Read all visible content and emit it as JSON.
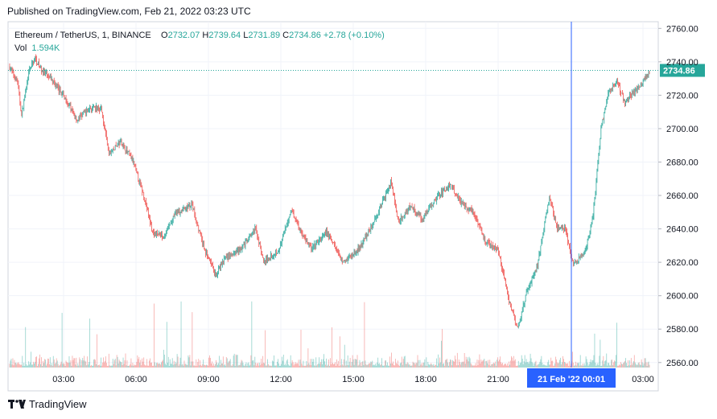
{
  "header": {
    "published_text": "Published on TradingView.com, Feb 21, 2022 03:23 UTC"
  },
  "legend": {
    "symbol": "Ethereum / TetherUS, 1, BINANCE",
    "o_label": "O",
    "o_value": "2732.07",
    "h_label": "H",
    "h_value": "2739.64",
    "l_label": "L",
    "l_value": "2731.89",
    "c_label": "C",
    "c_value": "2734.86",
    "change": "+2.78 (+0.10%)",
    "vol_label": "Vol",
    "vol_value": "1.594K"
  },
  "colors": {
    "up": "#26a69a",
    "down": "#ef5350",
    "crosshair": "#2962ff",
    "grid": "#f0f3fa"
  },
  "footer": {
    "brand": "TradingView",
    "logo_icon": "tradingview-logo-icon"
  },
  "chart_data": {
    "type": "candlestick",
    "symbol": "ETHUSDT",
    "interval": "1",
    "x_ticks": [
      "03:00",
      "06:00",
      "09:00",
      "12:00",
      "15:00",
      "18:00",
      "21:00",
      "03:00"
    ],
    "crosshair_label": "21 Feb '22   00:01",
    "y_ticks": [
      2760,
      2740,
      2720,
      2700,
      2680,
      2660,
      2640,
      2620,
      2600,
      2580,
      2560
    ],
    "ylim": [
      2557,
      2764
    ],
    "last_price": 2734.86,
    "last_price_label": "2734.86",
    "grid": true,
    "anchors": [
      [
        0,
        2737
      ],
      [
        10,
        2728
      ],
      [
        15,
        2708
      ],
      [
        25,
        2735
      ],
      [
        32,
        2742
      ],
      [
        40,
        2735
      ],
      [
        55,
        2728
      ],
      [
        70,
        2718
      ],
      [
        85,
        2705
      ],
      [
        100,
        2712
      ],
      [
        115,
        2712
      ],
      [
        125,
        2685
      ],
      [
        140,
        2692
      ],
      [
        155,
        2681
      ],
      [
        170,
        2658
      ],
      [
        180,
        2638
      ],
      [
        195,
        2636
      ],
      [
        210,
        2650
      ],
      [
        230,
        2654
      ],
      [
        245,
        2628
      ],
      [
        260,
        2612
      ],
      [
        270,
        2622
      ],
      [
        280,
        2624
      ],
      [
        295,
        2630
      ],
      [
        310,
        2640
      ],
      [
        320,
        2620
      ],
      [
        340,
        2628
      ],
      [
        355,
        2652
      ],
      [
        365,
        2640
      ],
      [
        380,
        2628
      ],
      [
        400,
        2638
      ],
      [
        420,
        2620
      ],
      [
        440,
        2628
      ],
      [
        460,
        2645
      ],
      [
        480,
        2668
      ],
      [
        490,
        2644
      ],
      [
        505,
        2654
      ],
      [
        520,
        2646
      ],
      [
        540,
        2660
      ],
      [
        555,
        2666
      ],
      [
        570,
        2655
      ],
      [
        585,
        2650
      ],
      [
        600,
        2632
      ],
      [
        615,
        2628
      ],
      [
        630,
        2595
      ],
      [
        640,
        2580
      ],
      [
        650,
        2600
      ],
      [
        665,
        2618
      ],
      [
        680,
        2660
      ],
      [
        690,
        2640
      ],
      [
        700,
        2640
      ],
      [
        710,
        2618
      ],
      [
        725,
        2626
      ],
      [
        735,
        2648
      ],
      [
        745,
        2700
      ],
      [
        755,
        2722
      ],
      [
        765,
        2728
      ],
      [
        775,
        2716
      ],
      [
        790,
        2724
      ],
      [
        804,
        2732
      ],
      [
        806,
        2735
      ]
    ]
  }
}
